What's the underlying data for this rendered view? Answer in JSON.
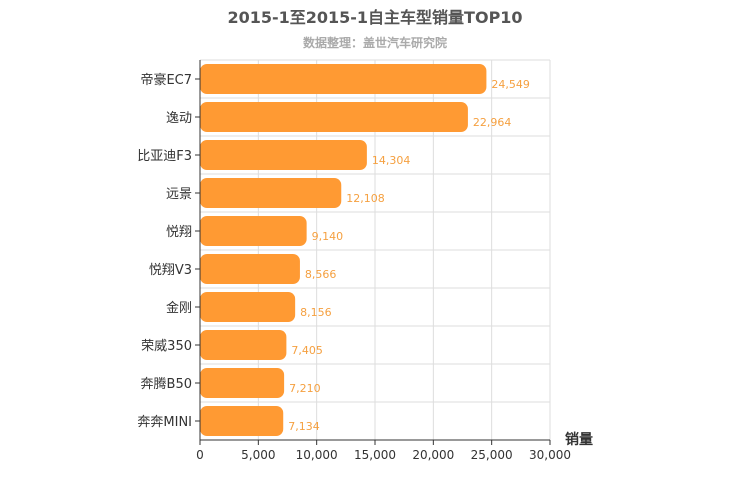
{
  "chart_data": {
    "type": "bar",
    "orientation": "horizontal",
    "title": "2015-1至2015-1自主车型销量TOP10",
    "subtitle": "数据整理：盖世汽车研究院",
    "xlabel": "销量",
    "ylabel": "",
    "categories": [
      "帝豪EC7",
      "逸动",
      "比亚迪F3",
      "远景",
      "悦翔",
      "悦翔V3",
      "金刚",
      "荣威350",
      "奔腾B50",
      "奔奔MINI"
    ],
    "values": [
      24549,
      22964,
      14304,
      12108,
      9140,
      8566,
      8156,
      7405,
      7210,
      7134
    ],
    "value_labels": [
      "24,549",
      "22,964",
      "14,304",
      "12,108",
      "9,140",
      "8,566",
      "8,156",
      "7,405",
      "7,210",
      "7,134"
    ],
    "xlim": [
      0,
      30000
    ],
    "x_ticks": [
      0,
      5000,
      10000,
      15000,
      20000,
      25000,
      30000
    ],
    "x_tick_labels": [
      "0",
      "5,000",
      "10,000",
      "15,000",
      "20,000",
      "25,000",
      "30,000"
    ],
    "grid": true,
    "colors": {
      "bar": "#ff9a33",
      "value_label": "#f5a040",
      "grid": "#dddddd",
      "axis": "#333333"
    }
  }
}
